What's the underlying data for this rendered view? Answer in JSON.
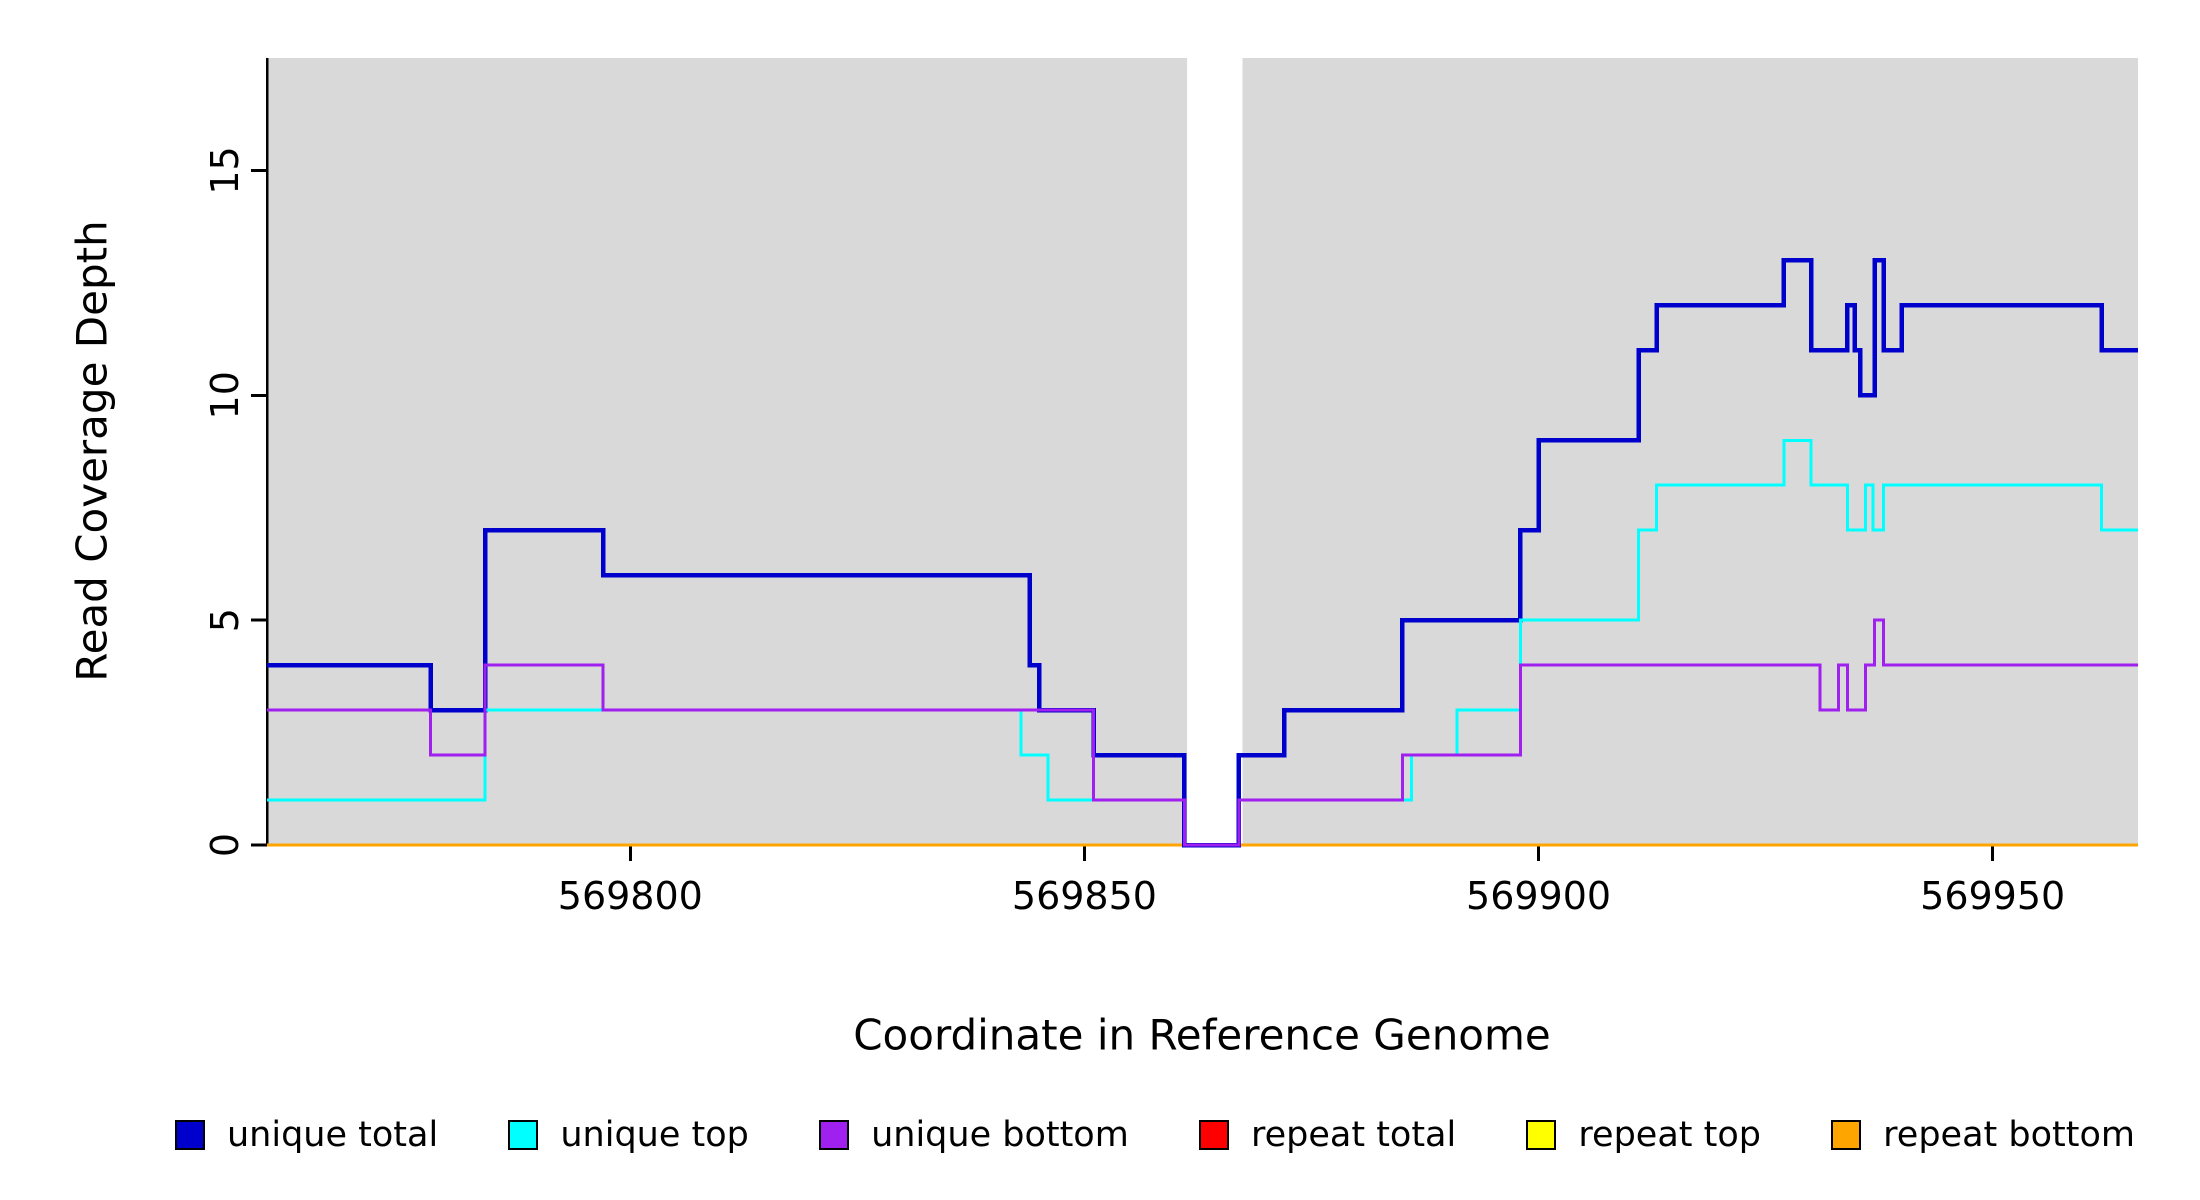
{
  "chart_data": {
    "type": "line",
    "subtype": "step-coverage",
    "xlabel": "Coordinate in Reference Genome",
    "ylabel": "Read Coverage Depth",
    "x_range": [
      569760,
      569966
    ],
    "y_range": [
      0,
      17.5
    ],
    "x_ticks": [
      569800,
      569850,
      569900,
      569950
    ],
    "y_ticks": [
      0,
      5,
      10,
      15
    ],
    "grid": false,
    "legend_position": "bottom",
    "axis_color": "#000000",
    "plot_bg_color": "#ffffff",
    "background_regions": [
      {
        "x0": 569760,
        "x1": 569861.3,
        "color": "#d9d9d9"
      },
      {
        "x0": 569867.4,
        "x1": 569966,
        "color": "#d9d9d9"
      }
    ],
    "series": [
      {
        "name": "repeat total",
        "color": "#ff0000",
        "width": 3,
        "steps": [
          [
            569760,
            0
          ],
          [
            569966,
            0
          ]
        ]
      },
      {
        "name": "repeat top",
        "color": "#ffff00",
        "width": 3,
        "steps": [
          [
            569760,
            0
          ],
          [
            569966,
            0
          ]
        ]
      },
      {
        "name": "repeat bottom",
        "color": "#ffa500",
        "width": 3,
        "steps": [
          [
            569760,
            0
          ],
          [
            569966,
            0
          ]
        ]
      },
      {
        "name": "unique total",
        "color": "#0000cd",
        "width": 4.5,
        "steps": [
          [
            569760,
            4
          ],
          [
            569778,
            3
          ],
          [
            569784,
            7
          ],
          [
            569797,
            6
          ],
          [
            569844,
            4
          ],
          [
            569845,
            3
          ],
          [
            569851,
            2
          ],
          [
            569861,
            0
          ],
          [
            569867,
            2
          ],
          [
            569872,
            3
          ],
          [
            569885,
            5
          ],
          [
            569898,
            7
          ],
          [
            569900,
            9
          ],
          [
            569911,
            11
          ],
          [
            569913,
            12
          ],
          [
            569927,
            13
          ],
          [
            569930,
            11
          ],
          [
            569934,
            12
          ],
          [
            569934.8,
            11
          ],
          [
            569935.4,
            10
          ],
          [
            569937,
            13
          ],
          [
            569938,
            11
          ],
          [
            569940,
            12
          ],
          [
            569962,
            11
          ],
          [
            569966,
            11
          ]
        ]
      },
      {
        "name": "unique top",
        "color": "#00ffff",
        "width": 3,
        "steps": [
          [
            569760,
            1
          ],
          [
            569784,
            3
          ],
          [
            569843,
            2
          ],
          [
            569846,
            1
          ],
          [
            569861,
            0
          ],
          [
            569867,
            1
          ],
          [
            569886,
            2
          ],
          [
            569891,
            3
          ],
          [
            569898,
            5
          ],
          [
            569911,
            7
          ],
          [
            569913,
            8
          ],
          [
            569927,
            9
          ],
          [
            569930,
            8
          ],
          [
            569934,
            7
          ],
          [
            569936,
            8
          ],
          [
            569936.8,
            7
          ],
          [
            569938,
            8
          ],
          [
            569962,
            7
          ],
          [
            569966,
            7
          ]
        ]
      },
      {
        "name": "unique bottom",
        "color": "#a020f0",
        "width": 3,
        "steps": [
          [
            569760,
            3
          ],
          [
            569778,
            2
          ],
          [
            569784,
            4
          ],
          [
            569797,
            3
          ],
          [
            569851,
            1
          ],
          [
            569861,
            0
          ],
          [
            569867,
            1
          ],
          [
            569885,
            2
          ],
          [
            569898,
            4
          ],
          [
            569931,
            3
          ],
          [
            569933,
            4
          ],
          [
            569934,
            3
          ],
          [
            569936,
            4
          ],
          [
            569937,
            5
          ],
          [
            569938,
            4
          ],
          [
            569966,
            4
          ]
        ]
      }
    ],
    "legend": [
      {
        "label": "unique total",
        "color": "#0000cd"
      },
      {
        "label": "unique top",
        "color": "#00ffff"
      },
      {
        "label": "unique bottom",
        "color": "#a020f0"
      },
      {
        "label": "repeat total",
        "color": "#ff0000"
      },
      {
        "label": "repeat top",
        "color": "#ffff00"
      },
      {
        "label": "repeat bottom",
        "color": "#ffa500"
      }
    ]
  }
}
